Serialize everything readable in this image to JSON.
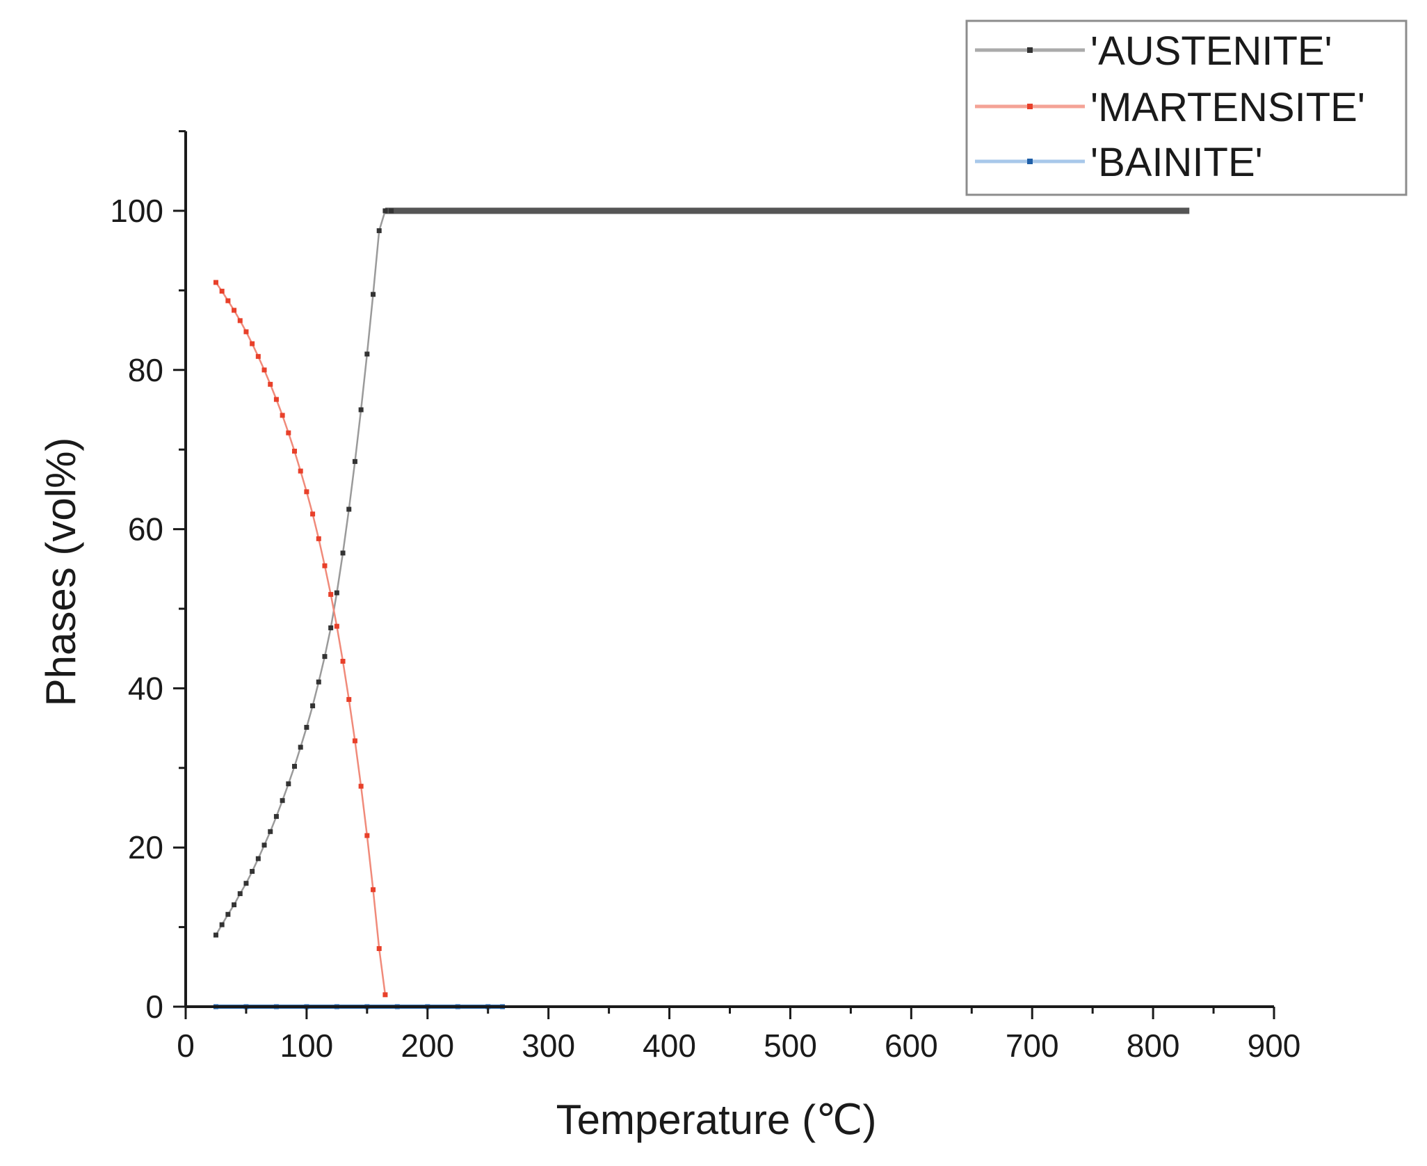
{
  "chart_data": {
    "type": "line",
    "title": "",
    "xlabel": "Temperature (℃)",
    "ylabel": "Phases (vol%)",
    "xlim": [
      0,
      900
    ],
    "ylim": [
      0,
      110
    ],
    "x_ticks": [
      0,
      100,
      200,
      300,
      400,
      500,
      600,
      700,
      800,
      900
    ],
    "y_ticks": [
      0,
      20,
      40,
      60,
      80,
      100
    ],
    "grid": false,
    "legend_position": "top-right",
    "series": [
      {
        "name": "'AUSTENITE'",
        "color": "#555555",
        "x": [
          25,
          30,
          35,
          40,
          45,
          50,
          55,
          60,
          65,
          70,
          75,
          80,
          85,
          90,
          95,
          100,
          105,
          110,
          115,
          120,
          125,
          130,
          135,
          140,
          145,
          150,
          155,
          160,
          165,
          170,
          180,
          200,
          300,
          400,
          500,
          600,
          700,
          800,
          830
        ],
        "y": [
          9,
          10.3,
          11.6,
          12.8,
          14.2,
          15.5,
          17,
          18.6,
          20.3,
          22,
          23.9,
          25.9,
          28,
          30.2,
          32.6,
          35.1,
          37.8,
          40.8,
          44,
          47.6,
          52,
          57,
          62.5,
          68.5,
          75,
          82,
          89.5,
          97.5,
          100,
          100,
          100,
          100,
          100,
          100,
          100,
          100,
          100,
          100,
          100
        ]
      },
      {
        "name": "'MARTENSITE'",
        "color": "#e8402a",
        "x": [
          25,
          30,
          35,
          40,
          45,
          50,
          55,
          60,
          65,
          70,
          75,
          80,
          85,
          90,
          95,
          100,
          105,
          110,
          115,
          120,
          125,
          130,
          135,
          140,
          145,
          150,
          155,
          160,
          165
        ],
        "y": [
          91,
          89.9,
          88.7,
          87.5,
          86.2,
          84.8,
          83.3,
          81.7,
          80,
          78.2,
          76.3,
          74.3,
          72.1,
          69.8,
          67.3,
          64.7,
          61.9,
          58.8,
          55.4,
          51.8,
          47.8,
          43.4,
          38.6,
          33.4,
          27.7,
          21.5,
          14.7,
          7.3,
          1.5
        ]
      },
      {
        "name": "'BAINITE'",
        "color": "#2f6fb5",
        "x": [
          25,
          50,
          75,
          100,
          125,
          150,
          175,
          200,
          225,
          250,
          262
        ],
        "y": [
          0,
          0,
          0,
          0,
          0,
          0,
          0,
          0,
          0,
          0,
          0
        ]
      }
    ]
  }
}
